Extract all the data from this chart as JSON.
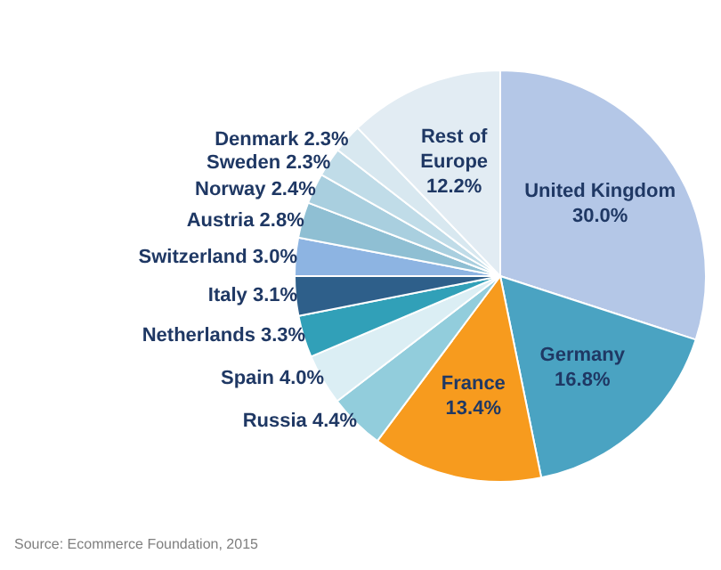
{
  "chart_data": {
    "type": "pie",
    "categories": [
      "United Kingdom",
      "Germany",
      "France",
      "Russia",
      "Spain",
      "Netherlands",
      "Italy",
      "Switzerland",
      "Austria",
      "Norway",
      "Sweden",
      "Denmark",
      "Rest of Europe"
    ],
    "values": [
      30.0,
      16.8,
      13.4,
      4.4,
      4.0,
      3.3,
      3.1,
      3.0,
      2.8,
      2.4,
      2.3,
      2.3,
      12.2
    ],
    "value_labels": [
      "30.0%",
      "16.8%",
      "13.4%",
      "4.4%",
      "4.0%",
      "3.3%",
      "3.1%",
      "3.0%",
      "2.8%",
      "2.4%",
      "2.3%",
      "2.3%",
      "12.2%"
    ],
    "colors": [
      "#b4c7e7",
      "#4aa3c2",
      "#f79b1e",
      "#92cddc",
      "#dbeef4",
      "#31a0b8",
      "#2e5f8a",
      "#8db4e2",
      "#8fbfd3",
      "#a9cfdf",
      "#c0dce8",
      "#d8e8f0",
      "#e2ecf3"
    ],
    "annotations": [
      "Source: Ecommerce Foundation, 2015"
    ],
    "legend": false
  }
}
